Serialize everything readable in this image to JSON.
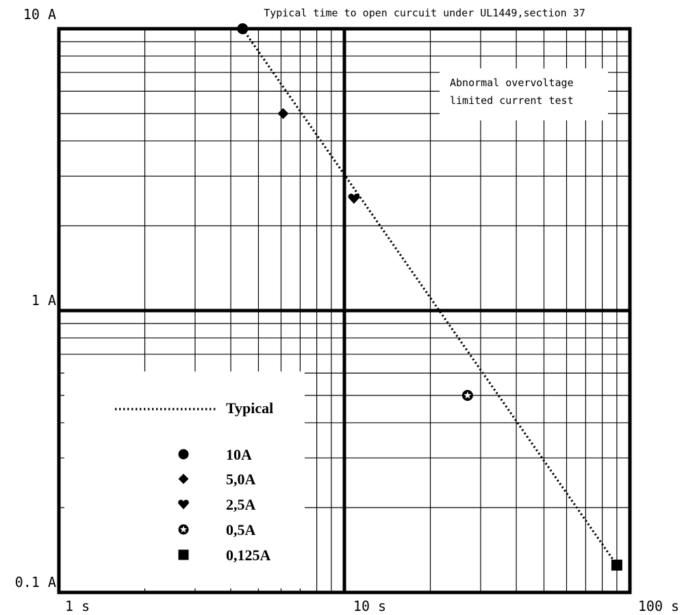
{
  "chart_data": {
    "type": "scatter",
    "title": "Typical time to open curcuit under UL1449,section 37",
    "annotation": "Abnormal overvoltage\nlimited current test",
    "x_scale": "log",
    "y_scale": "log",
    "xlim": [
      1,
      100
    ],
    "ylim": [
      0.1,
      10
    ],
    "grid": true,
    "x_ticks": [
      {
        "value": 1,
        "label": "1 s"
      },
      {
        "value": 10,
        "label": "10 s"
      },
      {
        "value": 100,
        "label": "100 s"
      }
    ],
    "y_ticks": [
      {
        "value": 10,
        "label": "10 A"
      },
      {
        "value": 1,
        "label": "1 A"
      },
      {
        "value": 0.1,
        "label": "0.1 A"
      }
    ],
    "series": [
      {
        "name": "Typical",
        "style": "dotted-line",
        "points": [
          [
            4.4,
            10
          ],
          [
            90,
            0.125
          ]
        ]
      }
    ],
    "points": [
      {
        "name": "10A",
        "marker": "circle",
        "x": 4.4,
        "y": 10
      },
      {
        "name": "5,0A",
        "marker": "diamond",
        "x": 6.1,
        "y": 5.0
      },
      {
        "name": "2,5A",
        "marker": "heart",
        "x": 10.8,
        "y": 2.5
      },
      {
        "name": "0,5A",
        "marker": "star-circle",
        "x": 27,
        "y": 0.5
      },
      {
        "name": "0,125A",
        "marker": "square",
        "x": 90,
        "y": 0.125
      }
    ],
    "legend": {
      "position": "bottom-left",
      "line_label": "Typical",
      "entries": [
        "10A",
        "5,0A",
        "2,5A",
        "0,5A",
        "0,125A"
      ]
    }
  }
}
